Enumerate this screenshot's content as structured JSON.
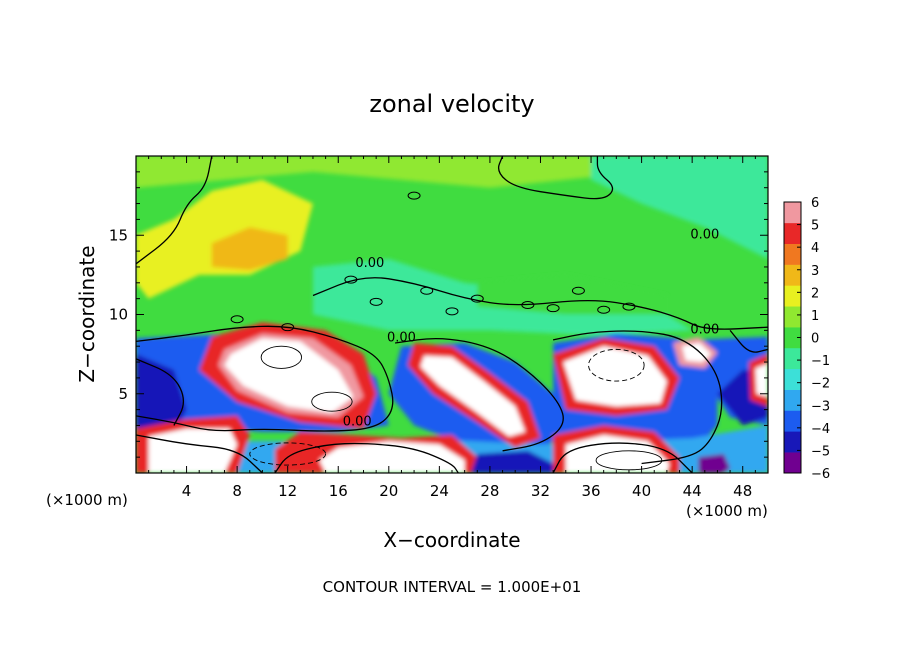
{
  "chart_data": {
    "type": "heatmap",
    "title": "zonal velocity",
    "xlabel": "X−coordinate",
    "ylabel": "Z−coordinate",
    "x_unit_left": "(×1000 m)",
    "x_unit_right": "(×1000 m)",
    "footer": "CONTOUR INTERVAL = 1.000E+01",
    "xlim": [
      0,
      50
    ],
    "ylim": [
      0,
      20
    ],
    "x_ticks": [
      4,
      8,
      12,
      16,
      20,
      24,
      28,
      32,
      36,
      40,
      44,
      48
    ],
    "y_ticks": [
      5,
      10,
      15
    ],
    "colorbar": {
      "vmin": -6,
      "vmax": 6,
      "ticks": [
        6,
        5,
        4,
        3,
        2,
        1,
        0,
        -1,
        -2,
        -3,
        -4,
        -5,
        -6
      ],
      "colors": [
        "#700090",
        "#1818b8",
        "#1c5cf0",
        "#30a8f0",
        "#3ce0d8",
        "#3ce89a",
        "#40dc40",
        "#90e830",
        "#e8f020",
        "#f0b818",
        "#f07820",
        "#e82828",
        "#f098a0"
      ]
    },
    "contour_labels": [
      {
        "text": "0.00",
        "x": 18.5,
        "y": 13.0
      },
      {
        "text": "0.00",
        "x": 21.0,
        "y": 8.3
      },
      {
        "text": "0.00",
        "x": 17.5,
        "y": 3.0
      },
      {
        "text": "0.00",
        "x": 45.0,
        "y": 14.8
      },
      {
        "text": "0.00",
        "x": 45.0,
        "y": 8.8
      }
    ]
  }
}
